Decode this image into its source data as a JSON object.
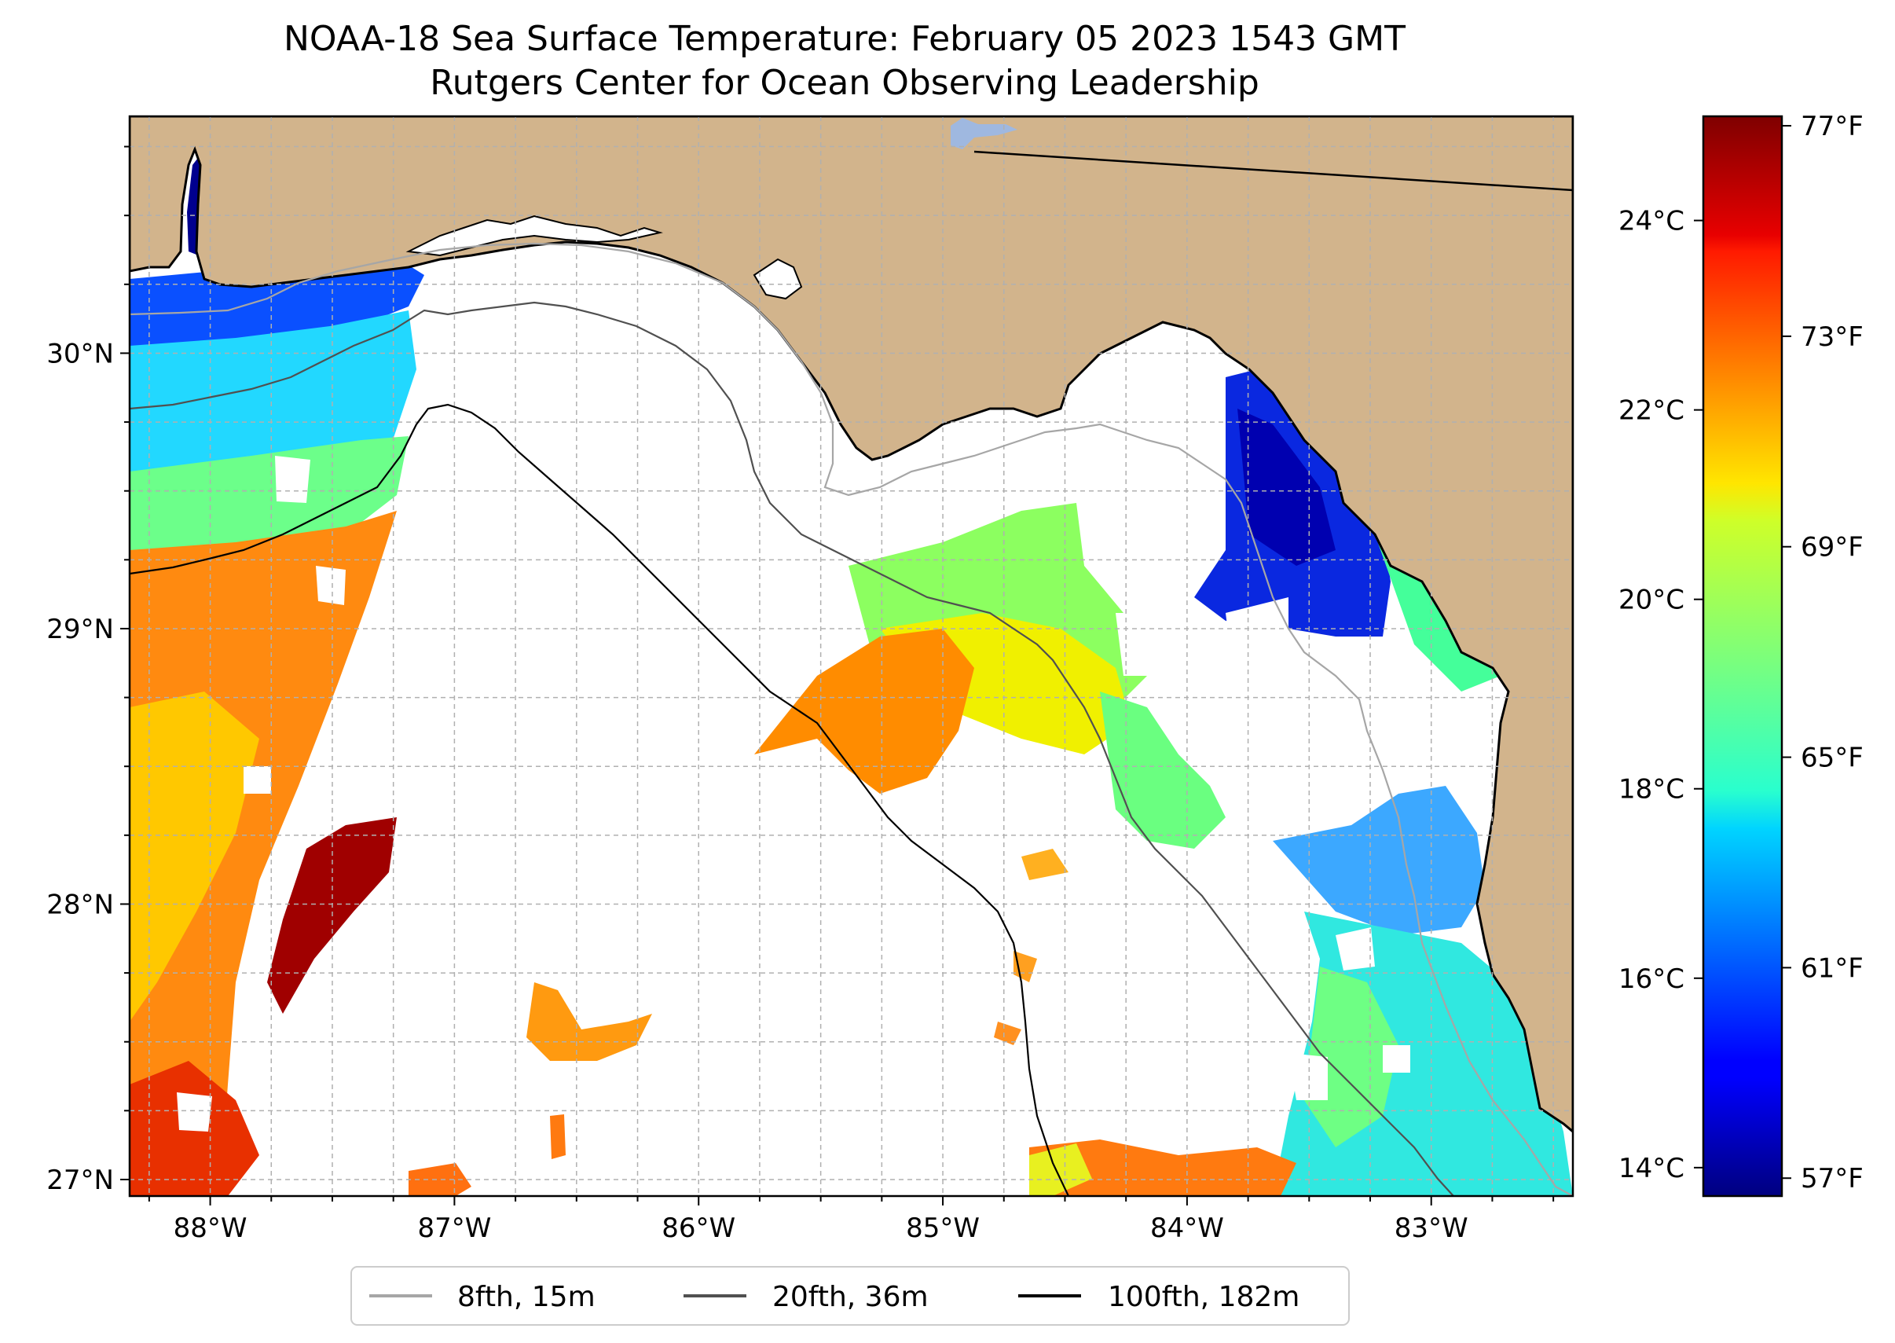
{
  "title": {
    "line1": "NOAA-18 Sea Surface Temperature: February 05 2023 1543 GMT",
    "line2": "Rutgers Center for Ocean Observing Leadership"
  },
  "map": {
    "lon_range": [
      -88.33,
      -82.42
    ],
    "lat_range": [
      26.94,
      30.86
    ],
    "lon_ticks": [
      {
        "value": -88,
        "label": "88°W"
      },
      {
        "value": -87,
        "label": "87°W"
      },
      {
        "value": -86,
        "label": "86°W"
      },
      {
        "value": -85,
        "label": "85°W"
      },
      {
        "value": -84,
        "label": "84°W"
      },
      {
        "value": -83,
        "label": "83°W"
      }
    ],
    "lat_ticks": [
      {
        "value": 30,
        "label": "30°N"
      },
      {
        "value": 29,
        "label": "29°N"
      },
      {
        "value": 28,
        "label": "28°N"
      },
      {
        "value": 27,
        "label": "27°N"
      }
    ],
    "gridlines": true,
    "colors": {
      "land": "#d2b48c",
      "ocean_nodata": "#ffffff",
      "lake": "#9fb8e0",
      "grid": "#b0b0b0"
    }
  },
  "colorbar": {
    "colormap": "jet",
    "range_c": [
      13.7,
      25.1
    ],
    "celsius_ticks": [
      {
        "value": 24,
        "label": "24°C"
      },
      {
        "value": 22,
        "label": "22°C"
      },
      {
        "value": 20,
        "label": "20°C"
      },
      {
        "value": 18,
        "label": "18°C"
      },
      {
        "value": 16,
        "label": "16°C"
      },
      {
        "value": 14,
        "label": "14°C"
      }
    ],
    "fahrenheit_ticks": [
      {
        "value": 77,
        "label": "77°F"
      },
      {
        "value": 73,
        "label": "73°F"
      },
      {
        "value": 69,
        "label": "69°F"
      },
      {
        "value": 65,
        "label": "65°F"
      },
      {
        "value": 61,
        "label": "61°F"
      },
      {
        "value": 57,
        "label": "57°F"
      }
    ]
  },
  "legend": {
    "placement": "bottom-center",
    "items": [
      {
        "label": "8fth, 15m",
        "color": "#a6a6a6"
      },
      {
        "label": "20fth, 36m",
        "color": "#505050"
      },
      {
        "label": "100fth, 182m",
        "color": "#000000"
      }
    ]
  }
}
